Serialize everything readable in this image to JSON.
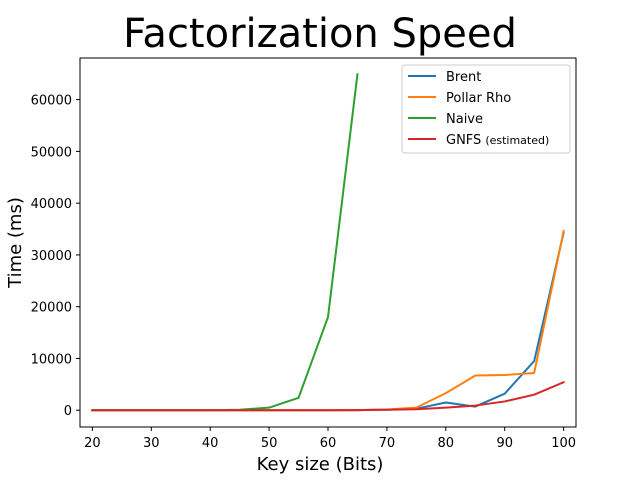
{
  "chart_data": {
    "type": "line",
    "title": "Factorization Speed",
    "xlabel": "Key size (Bits)",
    "ylabel": "Time (ms)",
    "xlim": [
      17.9,
      102.1
    ],
    "ylim": [
      -3240,
      68040
    ],
    "x_ticks": [
      20,
      30,
      40,
      50,
      60,
      70,
      80,
      90,
      100
    ],
    "y_ticks": [
      0,
      10000,
      20000,
      30000,
      40000,
      50000,
      60000
    ],
    "grid": false,
    "legend_position": "top-right",
    "series": [
      {
        "name": "Brent",
        "color": "#1f77b4",
        "x": [
          20,
          25,
          30,
          35,
          40,
          45,
          50,
          55,
          60,
          65,
          70,
          75,
          80,
          85,
          90,
          95,
          100
        ],
        "y": [
          0,
          0,
          0,
          0,
          0,
          0,
          0,
          0,
          0,
          20,
          100,
          300,
          1500,
          700,
          3200,
          9500,
          34300
        ]
      },
      {
        "name": "Pollar Rho",
        "color": "#ff7f0e",
        "x": [
          20,
          25,
          30,
          35,
          40,
          45,
          50,
          55,
          60,
          65,
          70,
          75,
          80,
          85,
          90,
          95,
          100
        ],
        "y": [
          0,
          0,
          0,
          0,
          0,
          0,
          0,
          0,
          0,
          20,
          150,
          500,
          3300,
          6700,
          6800,
          7200,
          34600
        ]
      },
      {
        "name": "Naive",
        "color": "#2ca02c",
        "x": [
          20,
          25,
          30,
          35,
          40,
          45,
          50,
          55,
          60,
          65
        ],
        "y": [
          0,
          0,
          0,
          0,
          0,
          100,
          500,
          2400,
          18000,
          64900
        ]
      },
      {
        "name": "GNFS",
        "name_suffix": "(estimated)",
        "color": "#d62728",
        "x": [
          20,
          25,
          30,
          35,
          40,
          45,
          50,
          55,
          60,
          65,
          70,
          75,
          80,
          85,
          90,
          95,
          100
        ],
        "y": [
          0,
          0,
          0,
          0,
          0,
          0,
          0,
          0,
          0,
          20,
          100,
          200,
          500,
          900,
          1700,
          3000,
          5400
        ]
      }
    ]
  }
}
